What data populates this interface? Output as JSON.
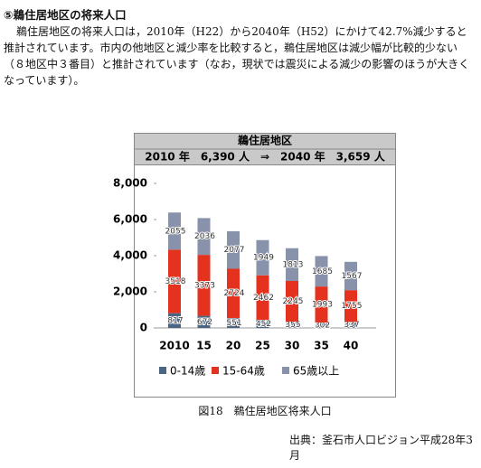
{
  "heading": "⑤鵜住居地区の将来人口",
  "paragraph": "鵜住居地区の将来人口は，2010年（H22）から2040年（H52）にかけて42.7%減少すると推計されています。市内の他地区と減少率を比較すると，鵜住居地区は減少幅が比較的少ない（８地区中３番目）と推計されています（なお，現状では震災による減少の影響のほうが大きくなっています）。",
  "chart_data": {
    "type": "stacked-bar",
    "title": "鵜住居地区",
    "subtitle": "2010 年　6,390 人　⇒　2040 年　3,659 人",
    "categories": [
      "2010",
      "15",
      "20",
      "25",
      "30",
      "35",
      "40"
    ],
    "series": [
      {
        "name": "0-14歳",
        "color": "#4b6683",
        "values": [
          817,
          672,
          551,
          452,
          355,
          302,
          337
        ]
      },
      {
        "name": "15-64歳",
        "color": "#e5321f",
        "values": [
          3518,
          3373,
          2724,
          2462,
          2245,
          1993,
          1755
        ]
      },
      {
        "name": "65歳以上",
        "color": "#8992ab",
        "values": [
          2055,
          2036,
          2077,
          1949,
          1813,
          1685,
          1567
        ]
      }
    ],
    "ylim": [
      0,
      8000
    ],
    "yticks": [
      0,
      {
        "value": 2000,
        "label": "2,000"
      },
      {
        "value": 4000,
        "label": "4,000"
      },
      {
        "value": 6000,
        "label": "6,000"
      },
      {
        "value": 8000,
        "label": "8,000"
      }
    ]
  },
  "caption": "図18　鵜住居地区将来人口",
  "source": "出典：釜石市人口ビジョン平成28年3月"
}
